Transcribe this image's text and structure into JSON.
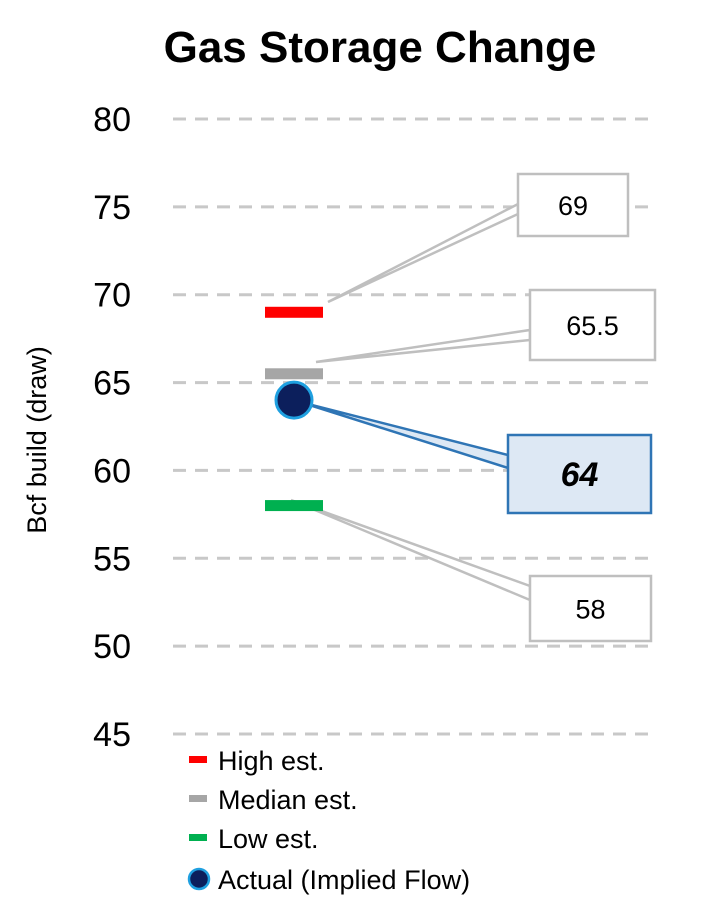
{
  "chart_data": {
    "type": "scatter",
    "title": "Gas Storage Change",
    "ylabel": "Bcf build (draw)",
    "xlabel": "",
    "ylim": [
      45,
      80
    ],
    "yticks": [
      45,
      50,
      55,
      60,
      65,
      70,
      75,
      80
    ],
    "grid": true,
    "legend_position": "bottom-left",
    "series": [
      {
        "name": "High est.",
        "value": 69,
        "label": "69",
        "marker": "dash",
        "color": "#ff0000"
      },
      {
        "name": "Median est.",
        "value": 65.5,
        "label": "65.5",
        "marker": "dash",
        "color": "#a6a6a6"
      },
      {
        "name": "Actual (Implied Flow)",
        "value": 64,
        "label": "64",
        "marker": "circle",
        "color": "#0c1f5c",
        "edge_color": "#1fa0e0"
      },
      {
        "name": "Low est.",
        "value": 58,
        "label": "58",
        "marker": "dash",
        "color": "#00b050"
      }
    ],
    "legend": [
      "High est.",
      "Median est.",
      "Low est.",
      "Actual (Implied Flow)"
    ]
  }
}
